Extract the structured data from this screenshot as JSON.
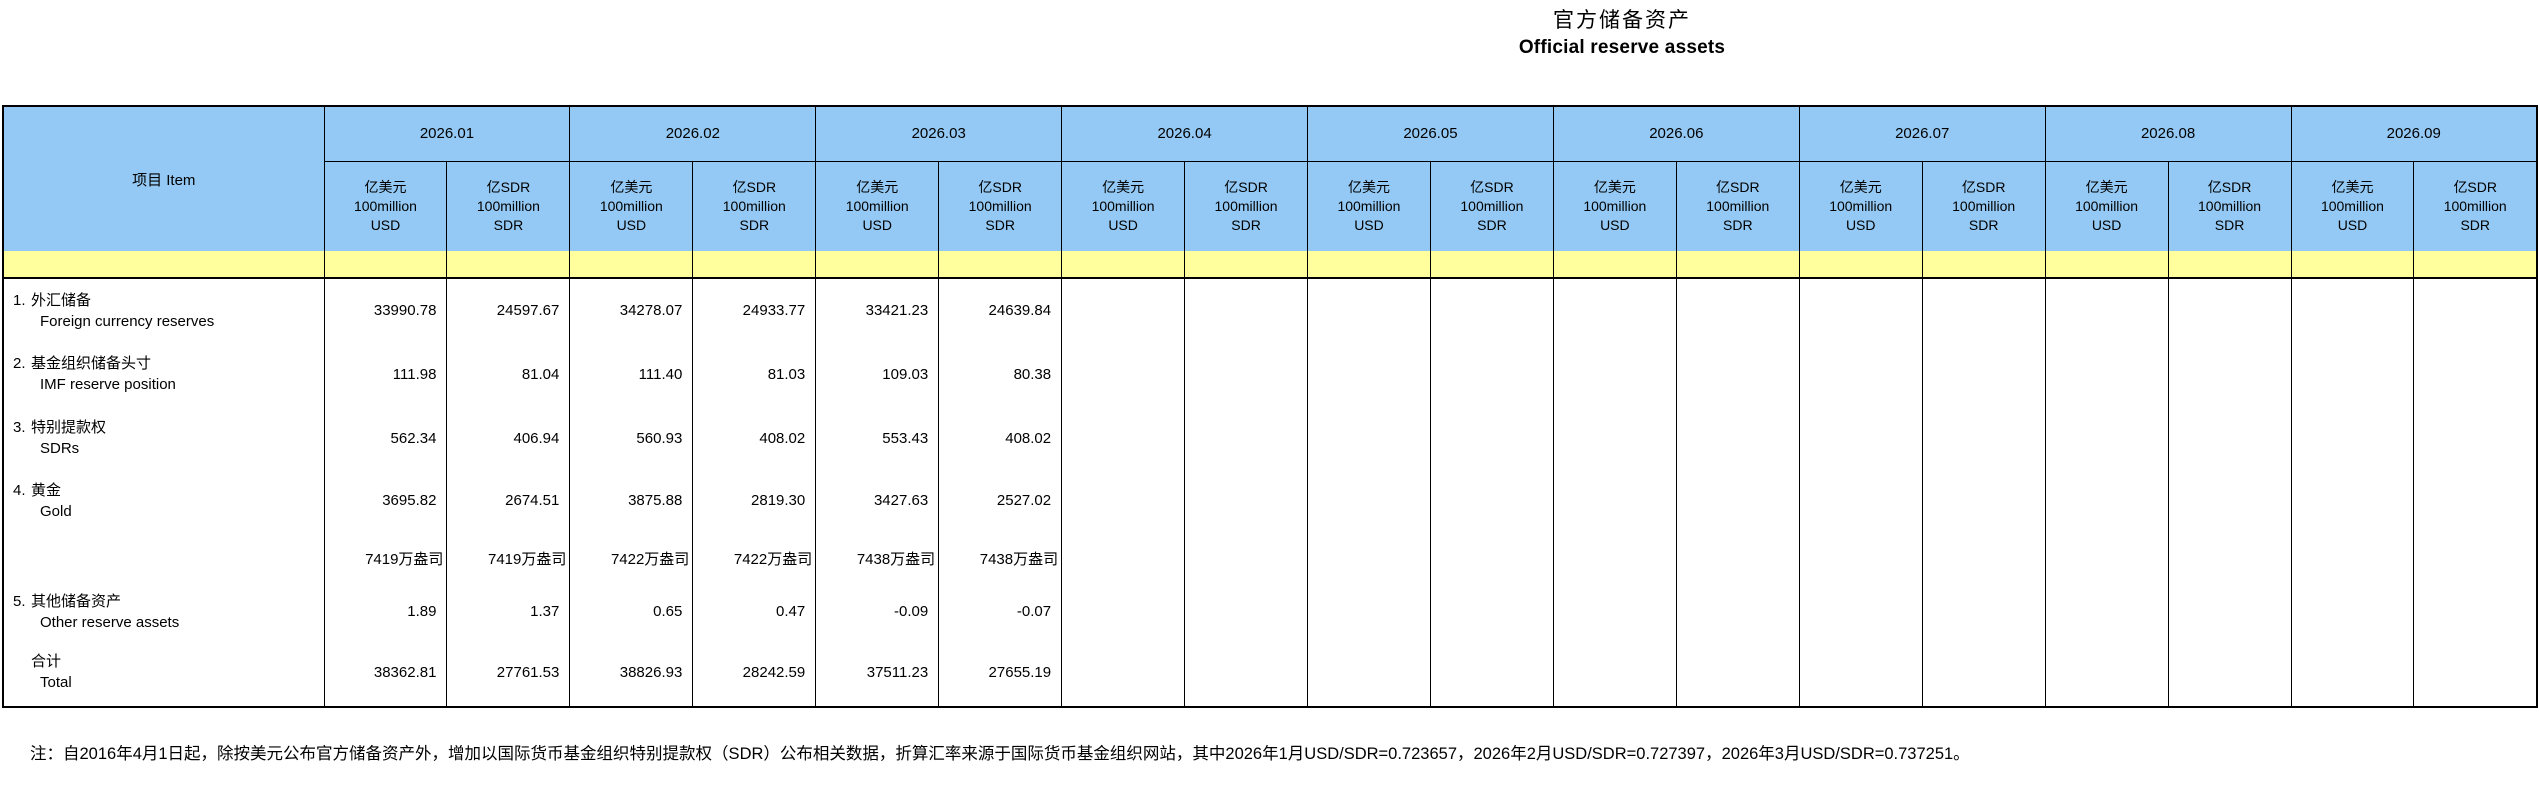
{
  "title": {
    "zh": "官方储备资产",
    "en": "Official reserve assets"
  },
  "table": {
    "item_header": "项目  Item",
    "months": [
      "2026.01",
      "2026.02",
      "2026.03",
      "2026.04",
      "2026.05",
      "2026.06",
      "2026.07",
      "2026.08",
      "2026.09"
    ],
    "unit_usd_lines": [
      "亿美元",
      "100million",
      "USD"
    ],
    "unit_sdr_lines": [
      "亿SDR",
      "100million",
      "SDR"
    ],
    "rows": [
      {
        "no": "1.",
        "zh": "外汇储备",
        "en": "Foreign currency reserves",
        "type": "data",
        "values": [
          "33990.78",
          "24597.67",
          "34278.07",
          "24933.77",
          "33421.23",
          "24639.84",
          "",
          "",
          "",
          "",
          "",
          "",
          "",
          "",
          "",
          "",
          "",
          ""
        ]
      },
      {
        "no": "2.",
        "zh": "基金组织储备头寸",
        "en": "IMF reserve position",
        "type": "data",
        "values": [
          "111.98",
          "81.04",
          "111.40",
          "81.03",
          "109.03",
          "80.38",
          "",
          "",
          "",
          "",
          "",
          "",
          "",
          "",
          "",
          "",
          "",
          ""
        ]
      },
      {
        "no": "3.",
        "zh": "特别提款权",
        "en": "SDRs",
        "type": "data",
        "values": [
          "562.34",
          "406.94",
          "560.93",
          "408.02",
          "553.43",
          "408.02",
          "",
          "",
          "",
          "",
          "",
          "",
          "",
          "",
          "",
          "",
          "",
          ""
        ]
      },
      {
        "no": "4.",
        "zh": "黄金",
        "en": "Gold",
        "type": "data",
        "values": [
          "3695.82",
          "2674.51",
          "3875.88",
          "2819.30",
          "3427.63",
          "2527.02",
          "",
          "",
          "",
          "",
          "",
          "",
          "",
          "",
          "",
          "",
          "",
          ""
        ]
      },
      {
        "no": "",
        "zh": "",
        "en": "",
        "type": "ounces",
        "values": [
          "7419万盎司",
          "7419万盎司",
          "7422万盎司",
          "7422万盎司",
          "7438万盎司",
          "7438万盎司",
          "",
          "",
          "",
          "",
          "",
          "",
          "",
          "",
          "",
          "",
          "",
          ""
        ]
      },
      {
        "no": "5.",
        "zh": "其他储备资产",
        "en": "Other reserve assets",
        "type": "data",
        "values": [
          "1.89",
          "1.37",
          "0.65",
          "0.47",
          "-0.09",
          "-0.07",
          "",
          "",
          "",
          "",
          "",
          "",
          "",
          "",
          "",
          "",
          "",
          ""
        ]
      },
      {
        "no": "",
        "zh": "合计",
        "en": "Total",
        "type": "total",
        "values": [
          "38362.81",
          "27761.53",
          "38826.93",
          "28242.59",
          "37511.23",
          "27655.19",
          "",
          "",
          "",
          "",
          "",
          "",
          "",
          "",
          "",
          "",
          "",
          ""
        ]
      }
    ]
  },
  "note": "注：自2016年4月1日起，除按美元公布官方储备资产外，增加以国际货币基金组织特别提款权（SDR）公布相关数据，折算汇率来源于国际货币基金组织网站，其中2026年1月USD/SDR=0.723657，2026年2月USD/SDR=0.727397，2026年3月USD/SDR=0.737251。",
  "colors": {
    "header_blue": "#93C9F4",
    "band_yellow": "#FFFF9E",
    "border": "#000000"
  }
}
